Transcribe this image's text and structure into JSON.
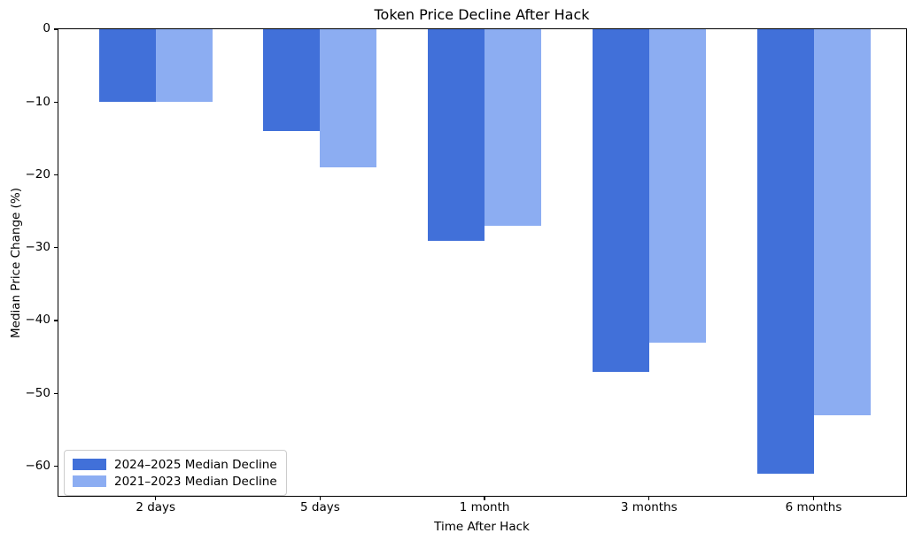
{
  "chart_data": {
    "type": "bar",
    "title": "Token Price Decline After Hack",
    "xlabel": "Time After Hack",
    "ylabel": "Median Price Change (%)",
    "categories": [
      "2 days",
      "5 days",
      "1 month",
      "3 months",
      "6 months"
    ],
    "series": [
      {
        "name": "2024–2025 Median Decline",
        "color": "#4170d9",
        "values": [
          -10,
          -14,
          -29,
          -47,
          -61
        ]
      },
      {
        "name": "2021–2023 Median Decline",
        "color": "#8cadf2",
        "values": [
          -10,
          -19,
          -27,
          -43,
          -53
        ]
      }
    ],
    "ylim": [
      -64.05,
      0
    ],
    "yticks": [
      0,
      -10,
      -20,
      -30,
      -40,
      -50,
      -60
    ],
    "ytick_labels": [
      "0",
      "−10",
      "−20",
      "−30",
      "−40",
      "−50",
      "−60"
    ],
    "grid": false,
    "legend_position": "lower left",
    "background_color": "#ffffff",
    "axis_color": "#000000"
  }
}
